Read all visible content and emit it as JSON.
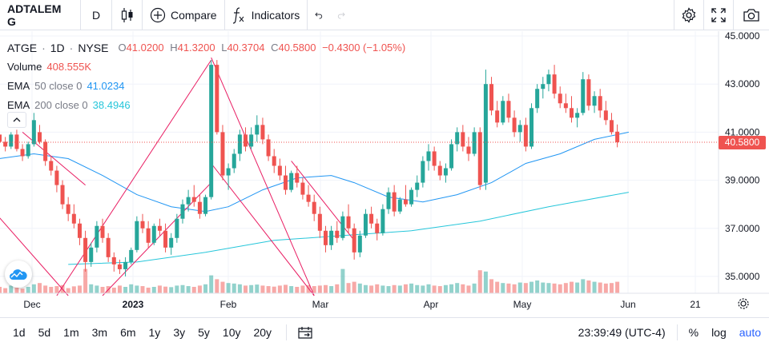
{
  "toolbar": {
    "symbol": "ADTALEM G",
    "interval": "D",
    "compare_label": "Compare",
    "indicators_label": "Indicators"
  },
  "legend": {
    "ticker": "ATGE",
    "interval": "1D",
    "exchange": "NYSE",
    "open_label": "O",
    "open": "41.0200",
    "high_label": "H",
    "high": "41.3200",
    "low_label": "L",
    "low": "40.3704",
    "close_label": "C",
    "close": "40.5800",
    "change": "−0.4300 (−1.05%)",
    "volume_label": "Volume",
    "volume": "408.555K",
    "ema50_label": "EMA",
    "ema50_params": "50 close 0",
    "ema50_value": "41.0234",
    "ema200_label": "EMA",
    "ema200_params": "200 close 0",
    "ema200_value": "38.4946"
  },
  "colors": {
    "up": "#26a69a",
    "down": "#ef5350",
    "ema50": "#2196f3",
    "ema200": "#26c6da",
    "drawing": "#e91e63"
  },
  "bottom": {
    "ranges": [
      "1d",
      "5d",
      "1m",
      "3m",
      "6m",
      "1y",
      "3y",
      "5y",
      "10y",
      "20y"
    ],
    "time": "23:39:49 (UTC-4)",
    "percent": "%",
    "log": "log",
    "auto": "auto"
  },
  "chart_data": {
    "type": "candlestick",
    "ylim": [
      34.3,
      45.2
    ],
    "yticks": [
      "45.0000",
      "43.0000",
      "41.0000",
      "39.0000",
      "37.0000",
      "35.0000"
    ],
    "ytick_values": [
      45,
      43,
      41,
      39,
      37,
      35
    ],
    "xticks": [
      "Dec",
      "2023",
      "Feb",
      "Mar",
      "Apr",
      "May",
      "Jun",
      "21"
    ],
    "last_price": "40.5800",
    "candles": [
      [
        40.9,
        41.2,
        40.3,
        40.6
      ],
      [
        40.6,
        40.8,
        40.2,
        40.4
      ],
      [
        40.4,
        41.0,
        40.3,
        40.9
      ],
      [
        40.9,
        41.1,
        40.2,
        40.3
      ],
      [
        40.3,
        40.5,
        39.8,
        40.0
      ],
      [
        40.0,
        40.6,
        39.9,
        40.5
      ],
      [
        40.5,
        41.8,
        40.4,
        41.5
      ],
      [
        41.0,
        41.3,
        40.5,
        40.6
      ],
      [
        40.6,
        40.7,
        39.6,
        39.8
      ],
      [
        39.8,
        40.0,
        39.2,
        39.4
      ],
      [
        39.4,
        39.6,
        38.5,
        38.8
      ],
      [
        38.8,
        39.0,
        37.8,
        38.0
      ],
      [
        38.0,
        38.3,
        37.3,
        37.6
      ],
      [
        37.6,
        38.0,
        37.0,
        37.2
      ],
      [
        37.2,
        37.4,
        36.3,
        36.6
      ],
      [
        36.6,
        36.9,
        35.2,
        35.6
      ],
      [
        35.6,
        36.4,
        35.4,
        36.2
      ],
      [
        36.2,
        37.3,
        36.0,
        37.1
      ],
      [
        37.1,
        37.4,
        36.4,
        36.6
      ],
      [
        36.6,
        36.8,
        35.6,
        35.8
      ],
      [
        35.8,
        36.0,
        35.2,
        35.5
      ],
      [
        35.5,
        35.7,
        35.1,
        35.3
      ],
      [
        35.3,
        35.8,
        35.0,
        35.6
      ],
      [
        35.6,
        36.2,
        35.5,
        36.1
      ],
      [
        36.1,
        37.5,
        36.0,
        37.3
      ],
      [
        37.3,
        37.6,
        36.8,
        37.0
      ],
      [
        37.0,
        37.3,
        36.2,
        36.4
      ],
      [
        36.4,
        37.2,
        36.3,
        37.1
      ],
      [
        37.1,
        37.4,
        36.7,
        36.9
      ],
      [
        36.9,
        37.2,
        36.0,
        36.2
      ],
      [
        36.2,
        36.8,
        35.9,
        36.6
      ],
      [
        36.6,
        37.6,
        36.4,
        37.4
      ],
      [
        37.4,
        38.2,
        37.2,
        38.0
      ],
      [
        38.0,
        38.6,
        37.7,
        38.3
      ],
      [
        38.3,
        38.8,
        37.9,
        38.1
      ],
      [
        38.1,
        38.4,
        37.4,
        37.6
      ],
      [
        37.6,
        38.4,
        37.5,
        38.3
      ],
      [
        38.3,
        44.0,
        38.2,
        43.8
      ],
      [
        43.8,
        44.0,
        40.9,
        41.0
      ],
      [
        41.0,
        41.3,
        39.0,
        39.2
      ],
      [
        39.2,
        39.7,
        38.6,
        39.5
      ],
      [
        39.5,
        40.3,
        39.3,
        40.1
      ],
      [
        40.1,
        41.1,
        39.8,
        40.9
      ],
      [
        40.9,
        41.2,
        40.2,
        40.4
      ],
      [
        40.4,
        41.2,
        40.3,
        40.9
      ],
      [
        40.9,
        41.7,
        40.6,
        41.3
      ],
      [
        41.3,
        41.6,
        40.5,
        40.7
      ],
      [
        40.7,
        40.9,
        39.8,
        40.0
      ],
      [
        40.0,
        40.3,
        39.3,
        39.6
      ],
      [
        39.6,
        39.9,
        39.0,
        39.2
      ],
      [
        39.2,
        39.6,
        38.4,
        38.6
      ],
      [
        38.6,
        39.4,
        38.5,
        39.3
      ],
      [
        39.3,
        39.6,
        38.7,
        38.9
      ],
      [
        38.9,
        39.1,
        38.2,
        38.4
      ],
      [
        38.4,
        38.8,
        37.9,
        38.1
      ],
      [
        38.1,
        38.4,
        37.3,
        37.6
      ],
      [
        37.6,
        37.9,
        36.6,
        36.9
      ],
      [
        36.9,
        37.1,
        36.0,
        36.3
      ],
      [
        36.3,
        37.1,
        36.1,
        36.9
      ],
      [
        36.9,
        37.3,
        36.4,
        36.6
      ],
      [
        36.6,
        37.7,
        36.5,
        37.5
      ],
      [
        37.5,
        38.0,
        36.8,
        37.0
      ],
      [
        37.0,
        37.2,
        35.7,
        36.0
      ],
      [
        36.0,
        36.9,
        35.8,
        36.7
      ],
      [
        36.7,
        37.8,
        36.6,
        37.6
      ],
      [
        37.6,
        37.9,
        37.0,
        37.2
      ],
      [
        37.2,
        37.4,
        36.5,
        36.8
      ],
      [
        36.8,
        38.0,
        36.7,
        37.8
      ],
      [
        37.8,
        38.7,
        37.6,
        38.5
      ],
      [
        38.5,
        38.8,
        37.5,
        37.7
      ],
      [
        37.7,
        38.3,
        37.6,
        38.2
      ],
      [
        38.2,
        38.8,
        37.9,
        38.0
      ],
      [
        38.0,
        38.7,
        37.9,
        38.6
      ],
      [
        38.6,
        39.2,
        38.3,
        38.9
      ],
      [
        38.9,
        40.0,
        38.7,
        39.8
      ],
      [
        39.8,
        40.5,
        39.4,
        40.2
      ],
      [
        40.2,
        40.4,
        39.4,
        39.6
      ],
      [
        39.6,
        39.8,
        39.0,
        39.2
      ],
      [
        39.2,
        39.7,
        38.9,
        39.5
      ],
      [
        39.5,
        40.7,
        39.4,
        40.5
      ],
      [
        40.5,
        41.2,
        40.2,
        41.0
      ],
      [
        41.0,
        41.3,
        40.2,
        40.4
      ],
      [
        40.4,
        40.8,
        39.8,
        40.1
      ],
      [
        40.1,
        41.2,
        40.0,
        41.0
      ],
      [
        41.0,
        41.2,
        38.6,
        38.8
      ],
      [
        38.9,
        43.6,
        38.6,
        43.0
      ],
      [
        43.0,
        43.3,
        41.7,
        41.9
      ],
      [
        41.9,
        42.3,
        41.2,
        41.4
      ],
      [
        41.4,
        42.5,
        41.3,
        42.3
      ],
      [
        42.3,
        42.6,
        41.4,
        41.6
      ],
      [
        41.6,
        41.9,
        40.8,
        41.0
      ],
      [
        41.0,
        41.5,
        40.6,
        41.3
      ],
      [
        41.3,
        41.6,
        40.2,
        40.4
      ],
      [
        40.4,
        42.2,
        40.3,
        42.0
      ],
      [
        42.0,
        43.0,
        41.8,
        42.8
      ],
      [
        42.8,
        43.3,
        42.4,
        43.0
      ],
      [
        43.0,
        43.6,
        42.7,
        43.4
      ],
      [
        43.4,
        43.8,
        42.4,
        42.6
      ],
      [
        42.6,
        42.9,
        42.0,
        42.2
      ],
      [
        42.2,
        42.6,
        41.8,
        42.0
      ],
      [
        42.0,
        42.5,
        41.4,
        41.6
      ],
      [
        41.6,
        42.0,
        41.2,
        41.8
      ],
      [
        41.8,
        43.5,
        41.7,
        43.2
      ],
      [
        43.2,
        43.4,
        41.9,
        42.1
      ],
      [
        42.1,
        42.7,
        41.8,
        42.5
      ],
      [
        42.5,
        42.8,
        41.6,
        41.9
      ],
      [
        41.9,
        42.3,
        41.3,
        41.5
      ],
      [
        41.5,
        41.8,
        40.9,
        41.0
      ],
      [
        41.02,
        41.32,
        40.37,
        40.58
      ]
    ],
    "ema50": [
      [
        0,
        39.9
      ],
      [
        6,
        40.1
      ],
      [
        12,
        39.9
      ],
      [
        18,
        39.2
      ],
      [
        24,
        38.4
      ],
      [
        30,
        37.9
      ],
      [
        36,
        37.7
      ],
      [
        40,
        37.9
      ],
      [
        46,
        38.6
      ],
      [
        52,
        39.1
      ],
      [
        58,
        39.2
      ],
      [
        62,
        38.9
      ],
      [
        68,
        38.3
      ],
      [
        74,
        38.1
      ],
      [
        80,
        38.4
      ],
      [
        86,
        38.9
      ],
      [
        92,
        39.7
      ],
      [
        98,
        40.1
      ],
      [
        104,
        40.7
      ],
      [
        110,
        41.0
      ]
    ],
    "ema200": [
      [
        12,
        35.5
      ],
      [
        24,
        35.6
      ],
      [
        36,
        36.0
      ],
      [
        48,
        36.5
      ],
      [
        60,
        36.7
      ],
      [
        72,
        36.9
      ],
      [
        84,
        37.3
      ],
      [
        96,
        37.9
      ],
      [
        110,
        38.5
      ]
    ],
    "volumes": [
      0.25,
      0.2,
      0.3,
      0.22,
      0.18,
      0.25,
      0.35,
      0.4,
      0.3,
      0.25,
      0.28,
      0.32,
      0.2,
      0.27,
      0.3,
      0.95,
      0.35,
      0.3,
      0.25,
      0.28,
      0.22,
      0.3,
      0.25,
      0.35,
      0.3,
      0.28,
      0.22,
      0.25,
      0.3,
      0.26,
      0.24,
      0.3,
      0.32,
      0.28,
      0.25,
      0.3,
      0.35,
      0.7,
      0.55,
      0.45,
      0.4,
      0.38,
      0.35,
      0.3,
      0.32,
      0.34,
      0.3,
      0.28,
      0.26,
      0.3,
      0.33,
      0.28,
      0.25,
      0.3,
      0.32,
      0.28,
      0.3,
      0.32,
      0.28,
      0.35,
      0.95,
      0.4,
      0.45,
      0.38,
      0.32,
      0.3,
      0.35,
      0.3,
      0.28,
      0.32,
      0.3,
      0.35,
      0.38,
      0.32,
      0.3,
      0.35,
      0.3,
      0.28,
      0.32,
      0.35,
      0.4,
      0.35,
      0.3,
      0.38,
      0.9,
      0.85,
      0.55,
      0.45,
      0.4,
      0.38,
      0.35,
      0.42,
      0.4,
      0.45,
      0.5,
      0.42,
      0.4,
      0.38,
      0.35,
      0.4,
      0.45,
      0.42,
      0.55,
      0.5,
      0.45,
      0.42,
      0.38,
      0.4,
      0.45,
      0.5
    ],
    "drawings": [
      [
        [
          -8,
          39.6
        ],
        [
          12,
          34.2
        ]
      ],
      [
        [
          4,
          41.0
        ],
        [
          15,
          38.8
        ]
      ],
      [
        [
          10,
          34.2
        ],
        [
          37,
          44.0
        ]
      ],
      [
        [
          37,
          44.1
        ],
        [
          55,
          34.2
        ]
      ],
      [
        [
          18,
          34.2
        ],
        [
          37,
          38.9
        ]
      ],
      [
        [
          37,
          39.7
        ],
        [
          55,
          34.2
        ]
      ],
      [
        [
          51,
          39.8
        ],
        [
          62,
          36.5
        ]
      ]
    ]
  }
}
